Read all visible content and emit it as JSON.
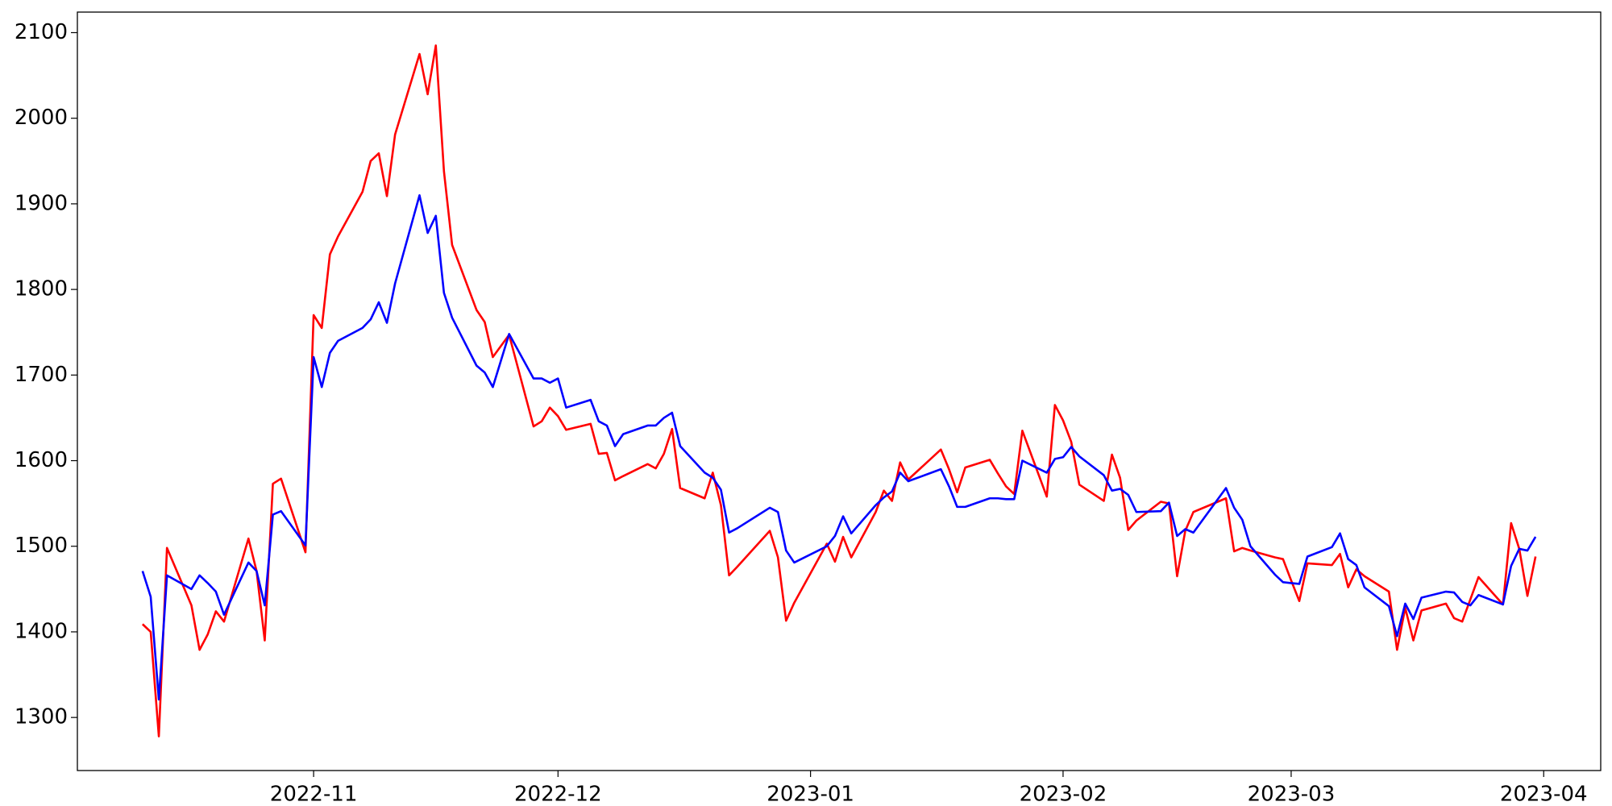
{
  "chart_data": {
    "type": "line",
    "x": [
      "2022-10-11",
      "2022-10-12",
      "2022-10-13",
      "2022-10-14",
      "2022-10-17",
      "2022-10-18",
      "2022-10-19",
      "2022-10-20",
      "2022-10-21",
      "2022-10-24",
      "2022-10-25",
      "2022-10-26",
      "2022-10-27",
      "2022-10-28",
      "2022-10-31",
      "2022-11-01",
      "2022-11-02",
      "2022-11-03",
      "2022-11-04",
      "2022-11-07",
      "2022-11-08",
      "2022-11-09",
      "2022-11-10",
      "2022-11-11",
      "2022-11-14",
      "2022-11-15",
      "2022-11-16",
      "2022-11-17",
      "2022-11-18",
      "2022-11-21",
      "2022-11-22",
      "2022-11-23",
      "2022-11-25",
      "2022-11-28",
      "2022-11-29",
      "2022-11-30",
      "2022-12-01",
      "2022-12-02",
      "2022-12-05",
      "2022-12-06",
      "2022-12-07",
      "2022-12-08",
      "2022-12-09",
      "2022-12-12",
      "2022-12-13",
      "2022-12-14",
      "2022-12-15",
      "2022-12-16",
      "2022-12-19",
      "2022-12-20",
      "2022-12-21",
      "2022-12-22",
      "2022-12-23",
      "2022-12-27",
      "2022-12-28",
      "2022-12-29",
      "2022-12-30",
      "2023-01-03",
      "2023-01-04",
      "2023-01-05",
      "2023-01-06",
      "2023-01-09",
      "2023-01-10",
      "2023-01-11",
      "2023-01-12",
      "2023-01-13",
      "2023-01-17",
      "2023-01-18",
      "2023-01-19",
      "2023-01-20",
      "2023-01-23",
      "2023-01-24",
      "2023-01-25",
      "2023-01-26",
      "2023-01-27",
      "2023-01-30",
      "2023-01-31",
      "2023-02-01",
      "2023-02-02",
      "2023-02-03",
      "2023-02-06",
      "2023-02-07",
      "2023-02-08",
      "2023-02-09",
      "2023-02-10",
      "2023-02-13",
      "2023-02-14",
      "2023-02-15",
      "2023-02-16",
      "2023-02-17",
      "2023-02-21",
      "2023-02-22",
      "2023-02-23",
      "2023-02-24",
      "2023-02-27",
      "2023-02-28",
      "2023-03-01",
      "2023-03-02",
      "2023-03-03",
      "2023-03-06",
      "2023-03-07",
      "2023-03-08",
      "2023-03-09",
      "2023-03-10",
      "2023-03-13",
      "2023-03-14",
      "2023-03-15",
      "2023-03-16",
      "2023-03-17",
      "2023-03-20",
      "2023-03-21",
      "2023-03-22",
      "2023-03-23",
      "2023-03-24",
      "2023-03-27",
      "2023-03-28",
      "2023-03-29",
      "2023-03-30",
      "2023-03-31"
    ],
    "series": [
      {
        "color": "#ff0000",
        "values": [
          1409,
          1400,
          1278,
          1498,
          1431,
          1379,
          1397,
          1424,
          1412,
          1509,
          1471,
          1390,
          1573,
          1579,
          1493,
          1770,
          1755,
          1841,
          1862,
          1914,
          1950,
          1959,
          1909,
          1981,
          2075,
          2028,
          2085,
          1938,
          1852,
          1776,
          1762,
          1721,
          1747,
          1640,
          1646,
          1662,
          1652,
          1636,
          1643,
          1608,
          1609,
          1577,
          1582,
          1596,
          1591,
          1608,
          1637,
          1568,
          1556,
          1586,
          1548,
          1466,
          1476,
          1518,
          1487,
          1413,
          1434,
          1503,
          1482,
          1511,
          1487,
          1540,
          1565,
          1553,
          1598,
          1578,
          1613,
          1590,
          1563,
          1592,
          1601,
          1585,
          1570,
          1561,
          1635,
          1558,
          1665,
          1647,
          1622,
          1572,
          1553,
          1607,
          1580,
          1519,
          1530,
          1552,
          1550,
          1465,
          1518,
          1540,
          1556,
          1494,
          1498,
          1495,
          1487,
          1485,
          1460,
          1436,
          1480,
          1478,
          1491,
          1452,
          1473,
          1465,
          1447,
          1379,
          1428,
          1390,
          1425,
          1433,
          1416,
          1412,
          1438,
          1464,
          1432,
          1527,
          1497,
          1442,
          1488
        ]
      },
      {
        "color": "#0000ff",
        "values": [
          1471,
          1441,
          1321,
          1466,
          1450,
          1466,
          1457,
          1447,
          1420,
          1481,
          1471,
          1431,
          1537,
          1541,
          1501,
          1721,
          1686,
          1726,
          1740,
          1755,
          1765,
          1785,
          1761,
          1807,
          1910,
          1866,
          1886,
          1796,
          1767,
          1711,
          1703,
          1686,
          1748,
          1696,
          1696,
          1691,
          1696,
          1662,
          1671,
          1646,
          1641,
          1617,
          1631,
          1641,
          1641,
          1650,
          1656,
          1617,
          1586,
          1580,
          1566,
          1516,
          1521,
          1545,
          1540,
          1495,
          1481,
          1500,
          1512,
          1535,
          1515,
          1548,
          1557,
          1564,
          1586,
          1576,
          1590,
          1570,
          1546,
          1546,
          1556,
          1556,
          1555,
          1555,
          1600,
          1586,
          1602,
          1604,
          1616,
          1605,
          1583,
          1565,
          1567,
          1560,
          1540,
          1541,
          1551,
          1512,
          1520,
          1516,
          1568,
          1545,
          1531,
          1500,
          1467,
          1458,
          1457,
          1456,
          1488,
          1499,
          1515,
          1485,
          1478,
          1452,
          1430,
          1395,
          1433,
          1415,
          1440,
          1447,
          1446,
          1435,
          1431,
          1443,
          1432,
          1477,
          1497,
          1495,
          1511
        ]
      }
    ],
    "xlim": [
      "2022-10-03",
      "2023-04-08"
    ],
    "xticks": [
      {
        "value": "2022-11-01",
        "label": "2022-11"
      },
      {
        "value": "2022-12-01",
        "label": "2022-12"
      },
      {
        "value": "2023-01-01",
        "label": "2023-01"
      },
      {
        "value": "2023-02-01",
        "label": "2023-02"
      },
      {
        "value": "2023-03-01",
        "label": "2023-03"
      },
      {
        "value": "2023-04-01",
        "label": "2023-04"
      }
    ],
    "ylim": [
      1238,
      2124
    ],
    "yticks": [
      1300,
      1400,
      1500,
      1600,
      1700,
      1800,
      1900,
      2000,
      2100
    ],
    "grid": false
  }
}
